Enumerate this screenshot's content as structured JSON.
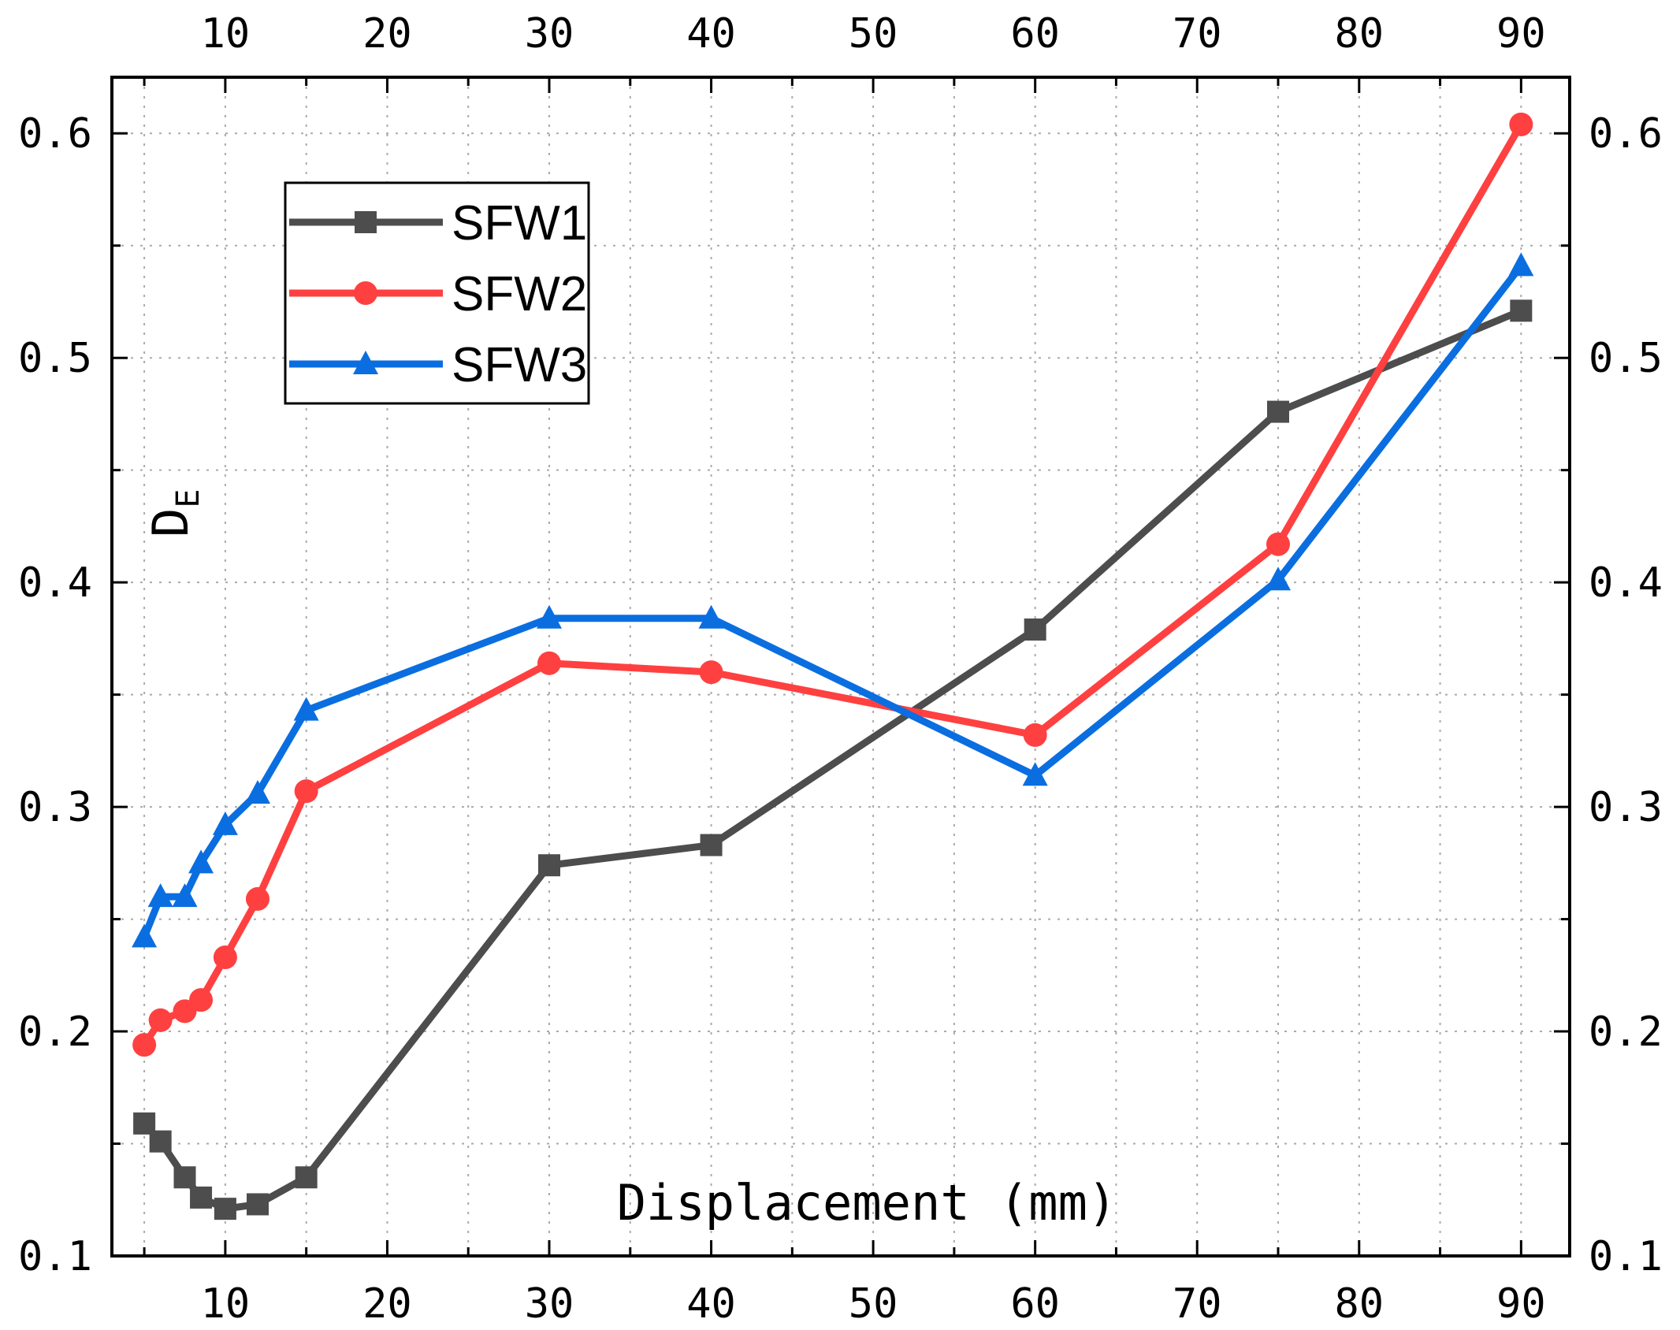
{
  "chart_data": {
    "type": "line",
    "title": "",
    "xlabel": "Displacement (mm)",
    "ylabel_main": "D",
    "ylabel_sub": "E",
    "xlim": [
      3,
      93
    ],
    "ylim": [
      0.1,
      0.625
    ],
    "x_ticks": [
      10,
      20,
      30,
      40,
      50,
      60,
      70,
      80,
      90
    ],
    "x_tick_labels": [
      "10",
      "20",
      "30",
      "40",
      "50",
      "60",
      "70",
      "80",
      "90"
    ],
    "y_ticks": [
      0.1,
      0.2,
      0.3,
      0.4,
      0.5,
      0.6
    ],
    "y_tick_labels": [
      "0.1",
      "0.2",
      "0.3",
      "0.4",
      "0.5",
      "0.6"
    ],
    "grid": true,
    "legend_position": "top-left",
    "series": [
      {
        "name": "SFW1",
        "color": "#4d4d4d",
        "marker": "square",
        "x": [
          5,
          6,
          7.5,
          8.5,
          10,
          12,
          15,
          30,
          40,
          60,
          75,
          90
        ],
        "y": [
          0.159,
          0.151,
          0.135,
          0.126,
          0.121,
          0.123,
          0.135,
          0.274,
          0.283,
          0.379,
          0.476,
          0.521
        ]
      },
      {
        "name": "SFW2",
        "color": "#ff4040",
        "marker": "circle",
        "x": [
          5,
          6,
          7.5,
          8.5,
          10,
          12,
          15,
          30,
          40,
          60,
          75,
          90
        ],
        "y": [
          0.194,
          0.205,
          0.209,
          0.214,
          0.233,
          0.259,
          0.307,
          0.364,
          0.36,
          0.332,
          0.417,
          0.604
        ]
      },
      {
        "name": "SFW3",
        "color": "#0a6ee0",
        "marker": "triangle",
        "x": [
          5,
          6,
          7.5,
          8.5,
          10,
          12,
          15,
          30,
          40,
          60,
          75,
          90
        ],
        "y": [
          0.242,
          0.26,
          0.26,
          0.275,
          0.292,
          0.306,
          0.343,
          0.384,
          0.384,
          0.314,
          0.401,
          0.541
        ]
      }
    ]
  }
}
